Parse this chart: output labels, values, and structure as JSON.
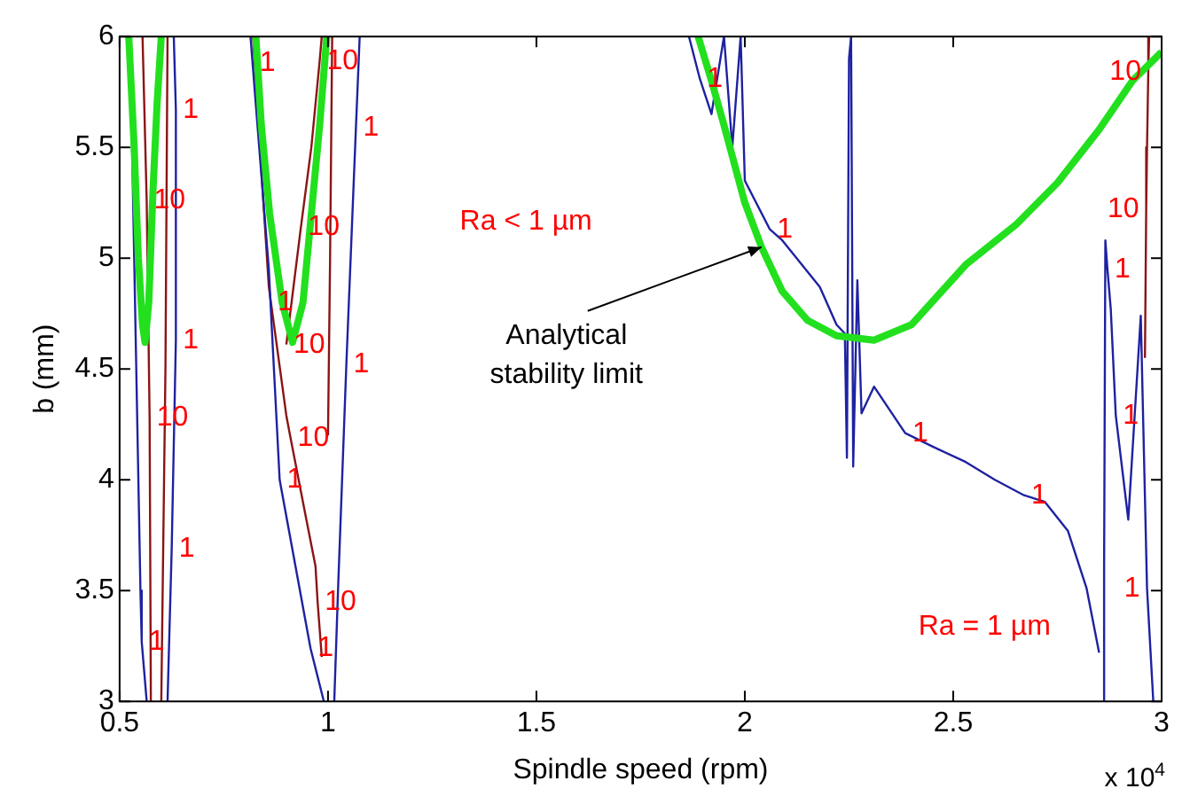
{
  "chart_data": {
    "type": "line",
    "xlabel": "Spindle speed (rpm)",
    "ylabel": "b (mm)",
    "xlim": [
      0.5,
      3
    ],
    "xticks": [
      0.5,
      1,
      1.5,
      2,
      2.5,
      3
    ],
    "ylim": [
      3,
      6
    ],
    "yticks": [
      3,
      3.5,
      4,
      4.5,
      5,
      5.5,
      6
    ],
    "grid": false,
    "legend": false,
    "marker": "none",
    "line_style": "solid",
    "series": [
      {
        "color": "#1e22a0",
        "x": [
          0.525,
          0.535,
          0.545,
          0.55,
          0.553,
          0.565
        ],
        "values": [
          6,
          5,
          4,
          3.5,
          3.27,
          3
        ]
      },
      {
        "color": "#1e22a0",
        "x": [
          0.63,
          0.635,
          0.635,
          0.625,
          0.615
        ],
        "values": [
          6,
          5.67,
          4.63,
          3.69,
          3
        ]
      },
      {
        "color": "#1e22a0",
        "x": [
          0.814,
          0.819,
          0.858,
          0.862,
          0.884,
          0.958,
          0.99
        ],
        "values": [
          6,
          5.88,
          4.95,
          4.8,
          4.0,
          3.24,
          3
        ]
      },
      {
        "color": "#1e22a0",
        "x": [
          1.076,
          1.067,
          1.044,
          1.024,
          1.015
        ],
        "values": [
          6,
          5.59,
          4.52,
          3.5,
          3
        ]
      },
      {
        "color": "#1e22a0",
        "x": [
          1.866,
          1.892,
          1.92,
          1.95,
          1.97,
          1.99,
          2.0,
          2.06,
          2.09,
          2.18,
          2.22,
          2.24,
          2.245,
          2.25,
          2.255,
          2.26,
          2.27,
          2.28,
          2.31,
          2.385,
          2.45,
          2.53,
          2.6,
          2.67,
          2.72,
          2.775,
          2.82,
          2.85
        ],
        "values": [
          6,
          5.81,
          5.65,
          6,
          5.5,
          6,
          5.35,
          5.13,
          5.08,
          4.87,
          4.7,
          4.66,
          4.1,
          5.9,
          6,
          4.06,
          4.9,
          4.3,
          4.42,
          4.21,
          4.15,
          4.08,
          4.0,
          3.93,
          3.9,
          3.77,
          3.51,
          3.22
        ]
      },
      {
        "color": "#1e22a0",
        "x": [
          2.86,
          2.862,
          2.865,
          2.87,
          2.878,
          2.89,
          2.92,
          2.95,
          2.965,
          2.98
        ],
        "values": [
          3,
          3.6,
          5.08,
          4.95,
          4.77,
          4.29,
          3.82,
          4.74,
          3.51,
          3
        ]
      },
      {
        "color": "#8b1414",
        "x": [
          0.555,
          0.565,
          0.572,
          0.575
        ],
        "values": [
          6,
          5.26,
          4.28,
          3
        ]
      },
      {
        "color": "#8b1414",
        "x": [
          0.615,
          0.61,
          0.6
        ],
        "values": [
          6,
          4.5,
          3
        ]
      },
      {
        "color": "#8b1414",
        "x": [
          0.82,
          0.84,
          0.858,
          0.9,
          0.91,
          0.945,
          0.97,
          0.975,
          0.985
        ],
        "values": [
          6,
          5.4,
          4.87,
          4.29,
          4.19,
          3.85,
          3.61,
          3.45,
          3.2
        ]
      },
      {
        "color": "#8b1414",
        "x": [
          1.01,
          1.005,
          1.0
        ],
        "values": [
          6,
          5,
          4.2
        ]
      },
      {
        "color": "#8b1414",
        "x": [
          0.9,
          0.935,
          0.96,
          0.98,
          0.985
        ],
        "values": [
          4.61,
          5.14,
          5.5,
          5.89,
          6
        ]
      },
      {
        "color": "#8b1414",
        "x": [
          2.97,
          2.968,
          2.965,
          2.963,
          2.96
        ],
        "values": [
          6,
          5.84,
          5.5,
          5.22,
          4.55
        ]
      },
      {
        "color": "#22e01e",
        "x": [
          0.522,
          0.535,
          0.545,
          0.555,
          0.561,
          0.57,
          0.58,
          0.59,
          0.6
        ],
        "values": [
          6,
          5.5,
          5.0,
          4.7,
          4.62,
          4.8,
          5.3,
          5.7,
          6
        ]
      },
      {
        "color": "#22e01e",
        "x": [
          0.827,
          0.84,
          0.86,
          0.89,
          0.915,
          0.94,
          0.96,
          0.98,
          0.997
        ],
        "values": [
          6,
          5.6,
          5.2,
          4.8,
          4.62,
          4.8,
          5.2,
          5.6,
          6
        ]
      },
      {
        "color": "#22e01e",
        "x": [
          1.888,
          1.92,
          1.95,
          2.0,
          2.04,
          2.09,
          2.15,
          2.22,
          2.31,
          2.4,
          2.53,
          2.65,
          2.75,
          2.85,
          2.93,
          3.0
        ],
        "values": [
          6,
          5.8,
          5.6,
          5.25,
          5.05,
          4.85,
          4.72,
          4.65,
          4.63,
          4.7,
          4.97,
          5.15,
          5.34,
          5.58,
          5.8,
          5.93
        ]
      }
    ],
    "annotations": [
      {
        "text": "1",
        "x": 0.635,
        "y": 5.67
      },
      {
        "text": "10",
        "x": 0.565,
        "y": 5.26
      },
      {
        "text": "1",
        "x": 0.635,
        "y": 4.63
      },
      {
        "text": "10",
        "x": 0.572,
        "y": 4.28
      },
      {
        "text": "1",
        "x": 0.625,
        "y": 3.69
      },
      {
        "text": "1",
        "x": 0.553,
        "y": 3.27
      },
      {
        "text": "1",
        "x": 0.819,
        "y": 5.88
      },
      {
        "text": "10",
        "x": 0.98,
        "y": 5.89
      },
      {
        "text": "1",
        "x": 1.067,
        "y": 5.59
      },
      {
        "text": "10",
        "x": 0.935,
        "y": 5.14
      },
      {
        "text": "1",
        "x": 0.862,
        "y": 4.8
      },
      {
        "text": "10",
        "x": 0.9,
        "y": 4.61
      },
      {
        "text": "1",
        "x": 1.044,
        "y": 4.52
      },
      {
        "text": "10",
        "x": 0.91,
        "y": 4.19
      },
      {
        "text": "1",
        "x": 0.884,
        "y": 4.0
      },
      {
        "text": "10",
        "x": 0.975,
        "y": 3.45
      },
      {
        "text": "1",
        "x": 0.958,
        "y": 3.24
      },
      {
        "text": "1",
        "x": 1.892,
        "y": 5.81
      },
      {
        "text": "1",
        "x": 2.06,
        "y": 5.13
      },
      {
        "text": "1",
        "x": 2.385,
        "y": 4.21
      },
      {
        "text": "1",
        "x": 2.67,
        "y": 3.93
      },
      {
        "text": "10",
        "x": 2.968,
        "y": 5.84
      },
      {
        "text": "10",
        "x": 2.963,
        "y": 5.22
      },
      {
        "text": "1",
        "x": 2.87,
        "y": 4.95
      },
      {
        "text": "1",
        "x": 2.89,
        "y": 4.29
      },
      {
        "text": "1",
        "x": 2.965,
        "y": 3.51
      },
      {
        "text": "Analytical\nstability limit",
        "x": 2.04,
        "y": 5.05
      },
      "Ra < 1 µm",
      "Ra = 1 µm",
      "x 10$^{4}$"
    ]
  }
}
